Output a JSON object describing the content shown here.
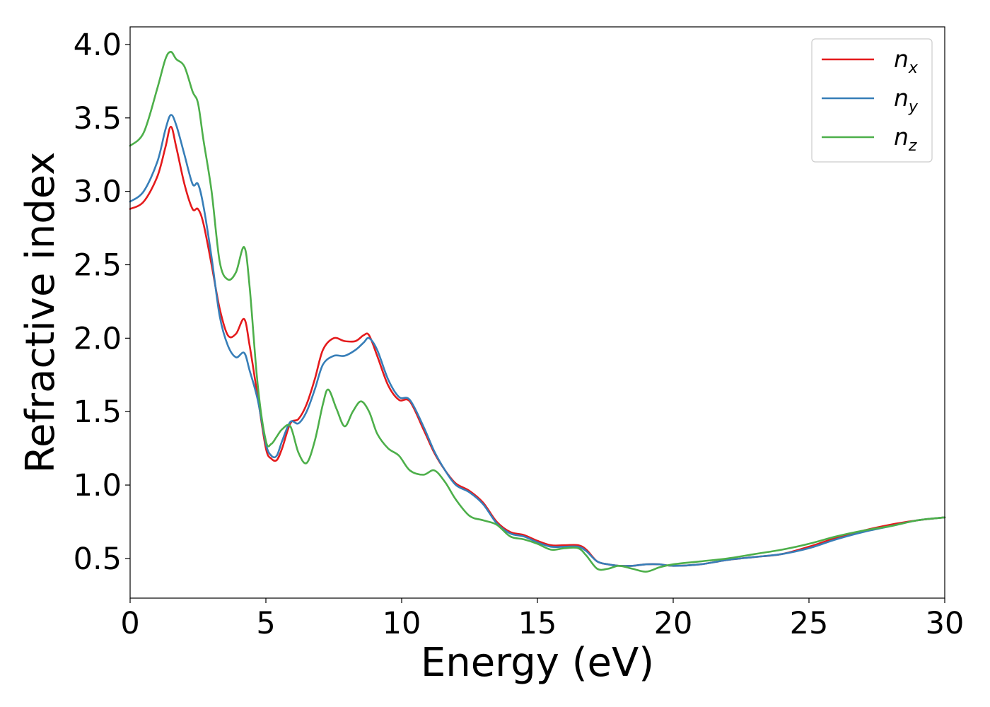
{
  "chart_data": {
    "type": "line",
    "title": "",
    "xlabel": "Energy (eV)",
    "ylabel": "Refractive index",
    "xlim": [
      0,
      30
    ],
    "ylim": [
      0.23,
      4.12
    ],
    "grid": false,
    "legend_position": "top-right",
    "x_ticks": [
      "0",
      "5",
      "10",
      "15",
      "20",
      "25",
      "30"
    ],
    "y_ticks": [
      "0.5",
      "1.0",
      "1.5",
      "2.0",
      "2.5",
      "3.0",
      "3.5",
      "4.0"
    ],
    "legend": [
      {
        "base": "n",
        "sub": "x",
        "color": "#e41a1c"
      },
      {
        "base": "n",
        "sub": "y",
        "color": "#377eb8"
      },
      {
        "base": "n",
        "sub": "z",
        "color": "#4daf4a"
      }
    ],
    "series": [
      {
        "name": "nx",
        "color": "#e41a1c",
        "x": [
          0,
          0.5,
          1.0,
          1.3,
          1.5,
          1.7,
          2.0,
          2.3,
          2.5,
          2.7,
          3.0,
          3.3,
          3.6,
          3.9,
          4.2,
          4.4,
          4.7,
          5.0,
          5.2,
          5.4,
          5.6,
          5.9,
          6.2,
          6.5,
          6.8,
          7.1,
          7.5,
          7.9,
          8.3,
          8.6,
          8.8,
          9.1,
          9.5,
          9.9,
          10.3,
          10.8,
          11.2,
          11.6,
          12.0,
          12.5,
          13.0,
          13.5,
          14.0,
          14.5,
          15.0,
          15.5,
          16.0,
          16.5,
          16.8,
          17.2,
          17.6,
          18.0,
          18.5,
          19.0,
          19.5,
          20.0,
          21.0,
          22.0,
          23.0,
          24.0,
          25.0,
          26.0,
          27.0,
          28.0,
          29.0,
          30.0
        ],
        "y": [
          2.88,
          2.93,
          3.1,
          3.3,
          3.44,
          3.3,
          3.05,
          2.88,
          2.88,
          2.78,
          2.5,
          2.2,
          2.02,
          2.03,
          2.13,
          1.95,
          1.6,
          1.25,
          1.18,
          1.17,
          1.25,
          1.42,
          1.45,
          1.55,
          1.72,
          1.92,
          2.0,
          1.98,
          1.98,
          2.02,
          2.02,
          1.88,
          1.68,
          1.58,
          1.57,
          1.38,
          1.22,
          1.1,
          1.01,
          0.96,
          0.88,
          0.75,
          0.68,
          0.66,
          0.62,
          0.59,
          0.59,
          0.59,
          0.56,
          0.48,
          0.46,
          0.45,
          0.45,
          0.46,
          0.46,
          0.45,
          0.46,
          0.49,
          0.51,
          0.53,
          0.58,
          0.64,
          0.69,
          0.73,
          0.76,
          0.78
        ]
      },
      {
        "name": "ny",
        "color": "#377eb8",
        "x": [
          0,
          0.5,
          1.0,
          1.3,
          1.5,
          1.7,
          2.0,
          2.3,
          2.5,
          2.7,
          3.0,
          3.3,
          3.6,
          3.9,
          4.2,
          4.4,
          4.7,
          5.0,
          5.2,
          5.4,
          5.6,
          5.9,
          6.2,
          6.5,
          6.8,
          7.1,
          7.5,
          7.9,
          8.3,
          8.6,
          8.8,
          9.1,
          9.5,
          9.9,
          10.3,
          10.8,
          11.2,
          11.6,
          12.0,
          12.5,
          13.0,
          13.5,
          14.0,
          14.5,
          15.0,
          15.5,
          16.0,
          16.5,
          16.8,
          17.2,
          17.6,
          18.0,
          18.5,
          19.0,
          19.5,
          20.0,
          21.0,
          22.0,
          23.0,
          24.0,
          25.0,
          26.0,
          27.0,
          28.0,
          29.0,
          30.0
        ],
        "y": [
          2.93,
          3.0,
          3.2,
          3.42,
          3.52,
          3.45,
          3.25,
          3.05,
          3.05,
          2.9,
          2.55,
          2.15,
          1.95,
          1.87,
          1.9,
          1.78,
          1.58,
          1.28,
          1.2,
          1.2,
          1.3,
          1.43,
          1.42,
          1.5,
          1.65,
          1.82,
          1.88,
          1.88,
          1.92,
          1.97,
          2.0,
          1.92,
          1.72,
          1.6,
          1.58,
          1.4,
          1.23,
          1.1,
          1.0,
          0.95,
          0.87,
          0.74,
          0.67,
          0.65,
          0.61,
          0.58,
          0.58,
          0.58,
          0.55,
          0.48,
          0.46,
          0.45,
          0.45,
          0.46,
          0.46,
          0.45,
          0.46,
          0.49,
          0.51,
          0.53,
          0.57,
          0.63,
          0.68,
          0.72,
          0.76,
          0.78
        ]
      },
      {
        "name": "nz",
        "color": "#4daf4a",
        "x": [
          0,
          0.5,
          1.0,
          1.3,
          1.5,
          1.7,
          2.0,
          2.3,
          2.5,
          2.7,
          3.0,
          3.3,
          3.6,
          3.9,
          4.2,
          4.4,
          4.7,
          5.0,
          5.2,
          5.4,
          5.6,
          5.9,
          6.2,
          6.5,
          6.8,
          7.1,
          7.3,
          7.6,
          7.9,
          8.2,
          8.5,
          8.8,
          9.1,
          9.5,
          9.9,
          10.3,
          10.8,
          11.2,
          11.6,
          12.0,
          12.5,
          13.0,
          13.5,
          14.0,
          14.5,
          15.0,
          15.5,
          16.0,
          16.5,
          16.8,
          17.2,
          17.6,
          18.0,
          18.5,
          19.0,
          19.5,
          20.0,
          21.0,
          22.0,
          23.0,
          24.0,
          25.0,
          26.0,
          27.0,
          28.0,
          29.0,
          30.0
        ],
        "y": [
          3.31,
          3.4,
          3.7,
          3.9,
          3.95,
          3.9,
          3.85,
          3.68,
          3.6,
          3.35,
          3.0,
          2.52,
          2.4,
          2.45,
          2.62,
          2.35,
          1.68,
          1.3,
          1.28,
          1.33,
          1.38,
          1.4,
          1.22,
          1.15,
          1.3,
          1.55,
          1.65,
          1.52,
          1.4,
          1.5,
          1.57,
          1.5,
          1.35,
          1.25,
          1.2,
          1.1,
          1.07,
          1.1,
          1.02,
          0.9,
          0.79,
          0.76,
          0.73,
          0.65,
          0.63,
          0.6,
          0.56,
          0.57,
          0.57,
          0.52,
          0.43,
          0.43,
          0.45,
          0.43,
          0.41,
          0.44,
          0.46,
          0.48,
          0.5,
          0.53,
          0.56,
          0.6,
          0.65,
          0.69,
          0.72,
          0.76,
          0.78
        ]
      }
    ]
  }
}
